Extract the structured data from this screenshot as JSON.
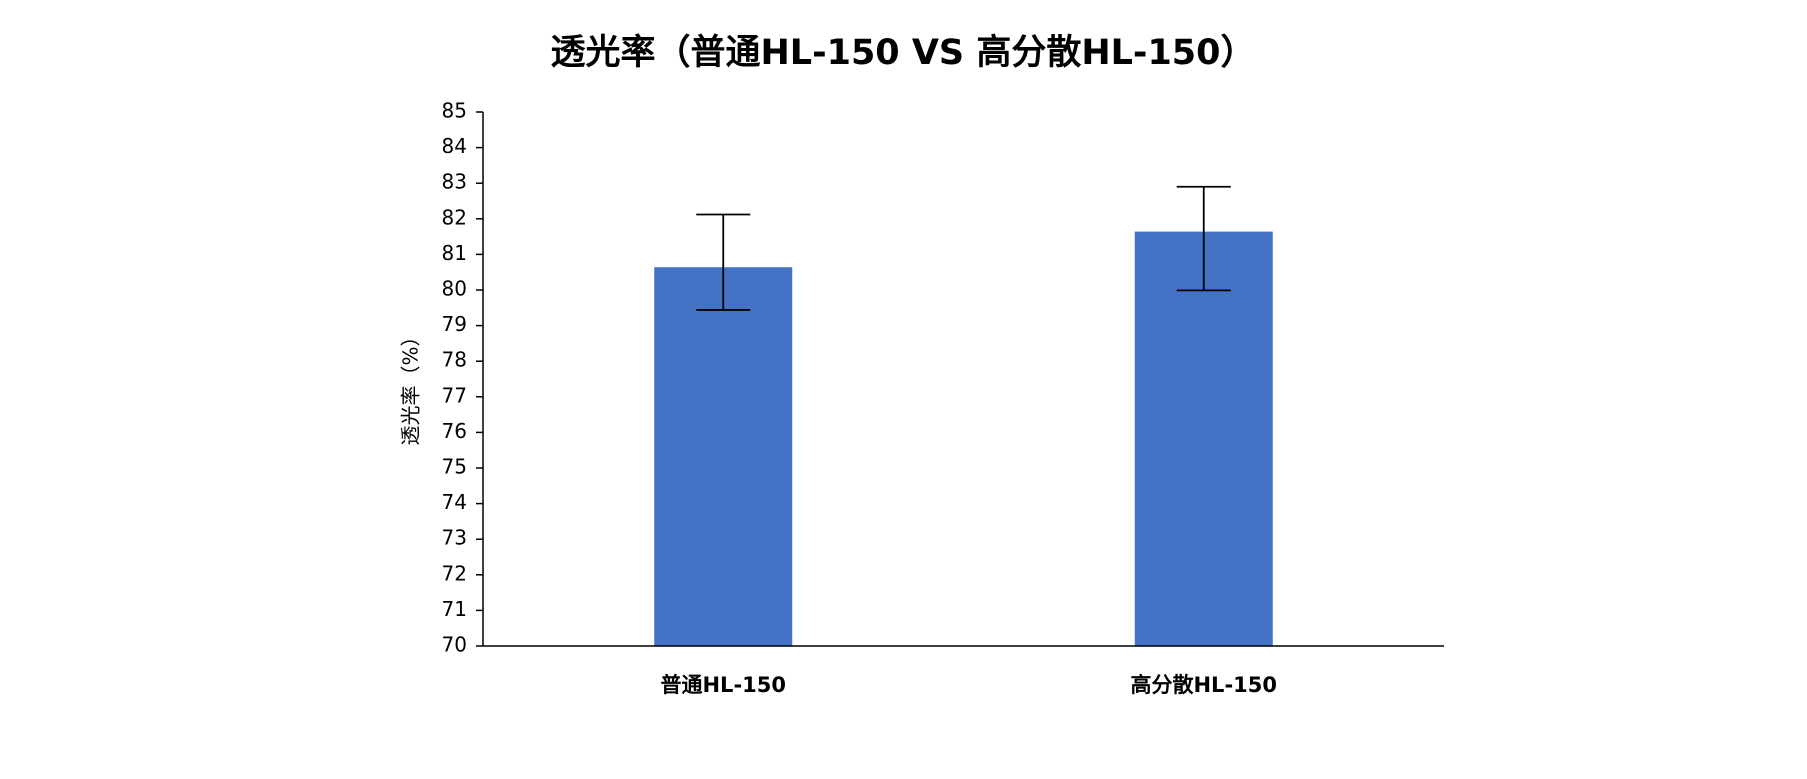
{
  "chart_data": {
    "type": "bar",
    "title": "透光率（普通HL-150 VS 高分散HL-150）",
    "y_label": "透光率（%）",
    "categories": [
      "普通HL-150",
      "高分散HL-150"
    ],
    "values": [
      80.64,
      81.64
    ],
    "error_minus": [
      1.2,
      1.65
    ],
    "error_plus": [
      1.48,
      1.26
    ],
    "color": "#4472c4",
    "ylim": [
      70,
      85
    ],
    "yticks": [
      70,
      71,
      72,
      73,
      74,
      75,
      76,
      77,
      78,
      79,
      80,
      81,
      82,
      83,
      84,
      85
    ],
    "grid": false
  }
}
